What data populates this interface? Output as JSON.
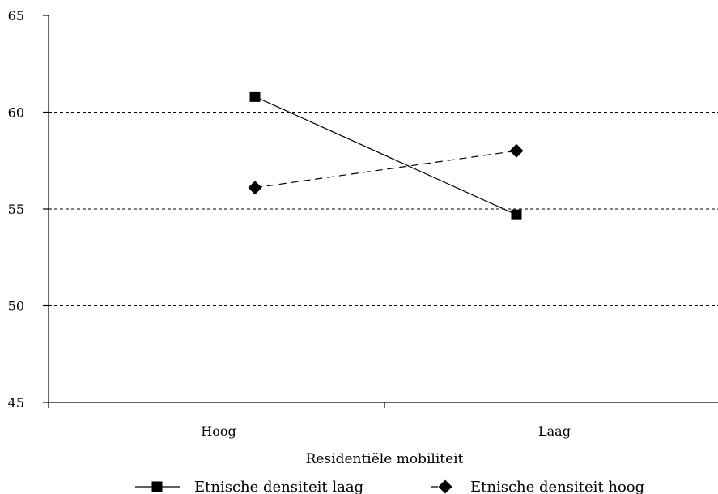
{
  "chart_data": {
    "type": "line",
    "title": "",
    "xlabel": "Residentiële mobiliteit",
    "ylabel": "",
    "categories": [
      "Hoog",
      "Laag"
    ],
    "ylim": [
      45,
      65
    ],
    "yticks": [
      45,
      50,
      55,
      60,
      65
    ],
    "grid": "horizontal dashed at 50, 55, 60",
    "legend_position": "bottom",
    "series": [
      {
        "name": "Etnische densiteit laag",
        "values": [
          60.8,
          54.7
        ],
        "marker": "square",
        "line_style": "solid",
        "color": "#000000"
      },
      {
        "name": "Etnische densiteit hoog",
        "values": [
          56.1,
          58.0
        ],
        "marker": "diamond",
        "line_style": "dashed",
        "color": "#000000"
      }
    ]
  }
}
